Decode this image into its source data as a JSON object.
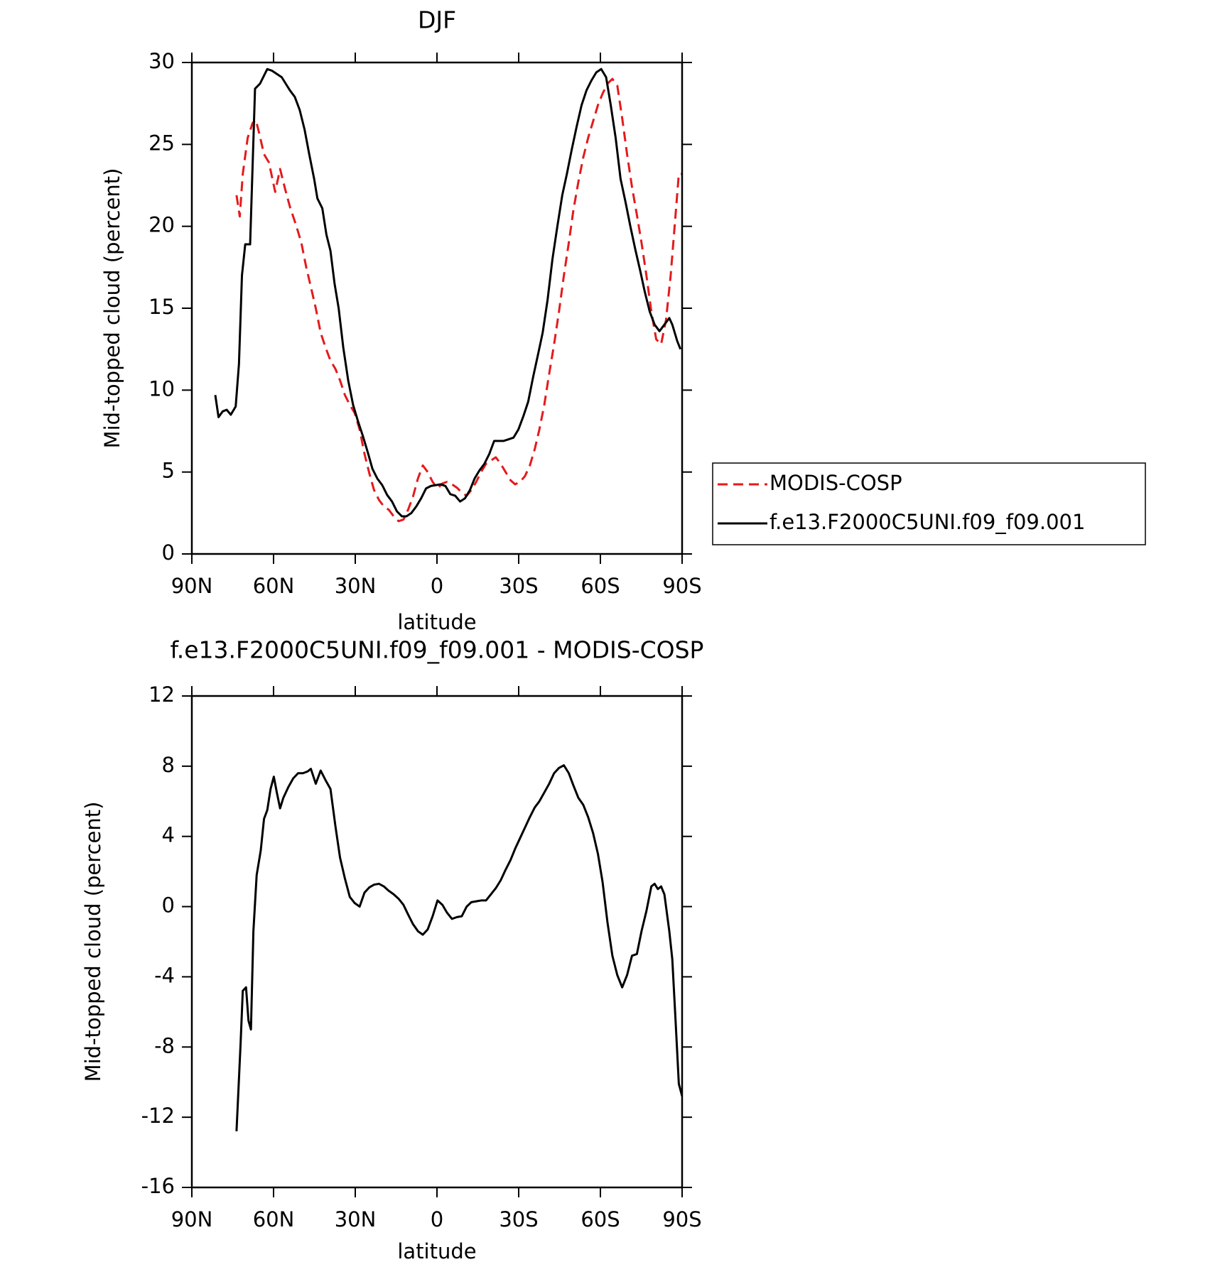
{
  "chart_data": [
    {
      "type": "line",
      "title": "DJF",
      "xlabel": "latitude",
      "ylabel": "Mid-topped cloud (percent)",
      "xlim": [
        90,
        -90
      ],
      "xticks": [
        {
          "value": 90,
          "label": "90N"
        },
        {
          "value": 60,
          "label": "60N"
        },
        {
          "value": 30,
          "label": "30N"
        },
        0,
        {
          "value": -30,
          "label": "30S"
        },
        {
          "value": -60,
          "label": "60S"
        },
        {
          "value": -90,
          "label": "90S"
        }
      ],
      "ylim": [
        0,
        30
      ],
      "yticks": [
        0,
        5,
        10,
        15,
        20,
        25,
        30
      ],
      "series": [
        {
          "name": "MODIS-COSP",
          "color": "#e41a1c",
          "dashed": true,
          "x": [
            73.6,
            72.4,
            71.3,
            69.5,
            67.7,
            66.5,
            65.3,
            63.5,
            61.7,
            59.4,
            57.6,
            55.8,
            54.0,
            51.6,
            49.8,
            48.0,
            46.3,
            44.5,
            42.7,
            40.9,
            39.1,
            37.3,
            35.6,
            33.8,
            32.0,
            30.2,
            28.4,
            26.6,
            24.8,
            23.1,
            21.3,
            19.5,
            17.7,
            15.9,
            14.1,
            12.3,
            10.6,
            8.8,
            7.0,
            5.2,
            3.4,
            1.6,
            -0.2,
            -2.0,
            -3.7,
            -5.5,
            -7.3,
            -9.1,
            -10.9,
            -12.6,
            -14.4,
            -16.2,
            -18.0,
            -19.8,
            -21.6,
            -23.4,
            -25.2,
            -27.0,
            -28.7,
            -30.5,
            -32.3,
            -34.1,
            -35.9,
            -37.6,
            -39.4,
            -41.2,
            -43.0,
            -44.8,
            -46.6,
            -48.4,
            -50.1,
            -51.9,
            -53.7,
            -55.5,
            -57.3,
            -59.1,
            -60.8,
            -62.6,
            -64.4,
            -66.2,
            -68.0,
            -69.8,
            -71.6,
            -73.4,
            -75.1,
            -76.9,
            -78.7,
            -80.5,
            -82.3,
            -84.1,
            -85.8,
            -87.6,
            -88.8,
            -90.0
          ],
          "values": [
            21.9,
            20.6,
            23.2,
            25.4,
            26.3,
            26.5,
            25.7,
            24.4,
            23.9,
            22.1,
            23.5,
            22.3,
            21.2,
            20.0,
            19.0,
            17.5,
            16.3,
            15.0,
            13.5,
            12.6,
            11.8,
            11.3,
            10.6,
            9.7,
            9.1,
            8.6,
            7.6,
            6.1,
            4.9,
            3.9,
            3.3,
            2.9,
            2.7,
            2.3,
            2.0,
            2.1,
            2.7,
            3.5,
            4.6,
            5.4,
            5.0,
            4.4,
            4.0,
            4.3,
            4.4,
            4.25,
            4.05,
            3.75,
            3.55,
            3.9,
            4.4,
            5.0,
            5.5,
            5.7,
            5.9,
            5.5,
            5.0,
            4.5,
            4.25,
            4.4,
            4.75,
            5.4,
            6.4,
            7.6,
            9.1,
            11.0,
            12.8,
            14.8,
            17.0,
            19.0,
            21.0,
            22.7,
            24.2,
            25.4,
            26.4,
            27.4,
            28.1,
            28.7,
            29.0,
            28.6,
            26.6,
            24.4,
            22.4,
            20.7,
            19.0,
            17.0,
            14.8,
            13.1,
            12.8,
            14.3,
            17.0,
            20.7,
            23.2,
            23.2
          ]
        },
        {
          "name": "f.e13.F2000C5UNI.f09_f09.001",
          "color": "#000000",
          "dashed": false,
          "x": [
            81.4,
            80.2,
            78.7,
            77.2,
            75.7,
            73.9,
            72.7,
            71.6,
            70.4,
            68.6,
            66.8,
            65.0,
            63.5,
            62.3,
            60.6,
            58.8,
            57.0,
            55.5,
            54.0,
            52.2,
            50.4,
            48.6,
            46.9,
            45.1,
            43.9,
            42.1,
            40.6,
            39.1,
            37.6,
            36.1,
            34.4,
            32.6,
            30.8,
            29.0,
            27.2,
            25.4,
            23.7,
            21.9,
            20.1,
            18.3,
            16.5,
            14.7,
            12.9,
            11.2,
            9.4,
            7.6,
            5.8,
            4.0,
            2.2,
            0.4,
            -1.3,
            -3.1,
            -4.9,
            -6.7,
            -8.5,
            -10.3,
            -12.1,
            -13.8,
            -15.6,
            -17.4,
            -19.2,
            -21.0,
            -22.8,
            -24.5,
            -26.3,
            -28.1,
            -29.9,
            -31.7,
            -33.5,
            -35.3,
            -37.0,
            -38.8,
            -40.6,
            -42.4,
            -44.2,
            -46.0,
            -47.7,
            -49.5,
            -51.3,
            -53.1,
            -54.9,
            -56.7,
            -58.5,
            -60.3,
            -62.1,
            -63.8,
            -65.6,
            -67.4,
            -69.2,
            -71.0,
            -72.8,
            -74.6,
            -76.3,
            -78.1,
            -79.9,
            -81.7,
            -83.5,
            -85.3,
            -86.4,
            -88.2,
            -89.4
          ],
          "values": [
            9.7,
            8.35,
            8.7,
            8.8,
            8.5,
            9.0,
            11.6,
            17.0,
            18.9,
            18.9,
            28.4,
            28.7,
            29.2,
            29.6,
            29.5,
            29.3,
            29.1,
            28.7,
            28.3,
            27.9,
            27.1,
            25.9,
            24.4,
            22.9,
            21.7,
            21.1,
            19.5,
            18.5,
            16.5,
            15.0,
            12.6,
            10.6,
            9.1,
            8.1,
            7.2,
            6.2,
            5.2,
            4.6,
            4.2,
            3.6,
            3.2,
            2.6,
            2.3,
            2.3,
            2.5,
            2.9,
            3.4,
            4.0,
            4.15,
            4.2,
            4.25,
            4.15,
            3.65,
            3.55,
            3.2,
            3.4,
            3.9,
            4.6,
            5.1,
            5.5,
            6.1,
            6.9,
            6.9,
            6.9,
            7.0,
            7.1,
            7.6,
            8.4,
            9.3,
            10.8,
            12.1,
            13.5,
            15.5,
            18.0,
            20.0,
            21.9,
            23.2,
            24.7,
            26.1,
            27.4,
            28.3,
            28.9,
            29.4,
            29.6,
            29.1,
            27.4,
            25.4,
            22.9,
            21.5,
            20.0,
            18.6,
            17.3,
            16.0,
            14.8,
            14.0,
            13.6,
            14.0,
            14.4,
            14.0,
            13.0,
            12.5
          ]
        }
      ]
    },
    {
      "type": "line",
      "title": "f.e13.F2000C5UNI.f09_f09.001 - MODIS-COSP",
      "xlabel": "latitude",
      "ylabel": "Mid-topped cloud (percent)",
      "xlim": [
        90,
        -90
      ],
      "xticks": [
        {
          "value": 90,
          "label": "90N"
        },
        {
          "value": 60,
          "label": "60N"
        },
        {
          "value": 30,
          "label": "30N"
        },
        0,
        {
          "value": -30,
          "label": "30S"
        },
        {
          "value": -60,
          "label": "60S"
        },
        {
          "value": -90,
          "label": "90S"
        }
      ],
      "ylim": [
        -16,
        12
      ],
      "yticks": [
        -16,
        -12,
        -8,
        -4,
        0,
        4,
        8,
        12
      ],
      "series": [
        {
          "color": "#000000",
          "dashed": false,
          "x": [
            73.6,
            72.1,
            71.3,
            70.1,
            69.2,
            68.3,
            67.4,
            66.2,
            64.7,
            63.5,
            62.3,
            61.1,
            59.9,
            58.8,
            57.6,
            56.4,
            54.6,
            52.8,
            51.0,
            49.2,
            47.5,
            46.3,
            44.5,
            42.7,
            40.9,
            39.1,
            37.3,
            35.6,
            33.8,
            32.0,
            30.2,
            28.4,
            26.6,
            24.8,
            23.1,
            21.3,
            19.5,
            17.7,
            15.9,
            14.1,
            12.3,
            10.6,
            8.8,
            7.0,
            5.2,
            3.4,
            1.6,
            -0.2,
            -2.0,
            -3.7,
            -5.5,
            -7.3,
            -9.1,
            -10.9,
            -12.6,
            -14.4,
            -16.2,
            -18.0,
            -19.8,
            -21.6,
            -23.4,
            -25.2,
            -27.0,
            -28.7,
            -30.5,
            -32.3,
            -34.1,
            -35.9,
            -37.6,
            -39.4,
            -41.2,
            -43.0,
            -44.8,
            -46.6,
            -48.4,
            -50.1,
            -51.9,
            -53.7,
            -55.5,
            -57.3,
            -59.1,
            -60.8,
            -62.6,
            -64.4,
            -66.2,
            -68.0,
            -69.8,
            -71.6,
            -73.4,
            -75.1,
            -76.9,
            -78.7,
            -79.9,
            -81.1,
            -82.3,
            -83.5,
            -85.3,
            -86.4,
            -87.6,
            -88.8,
            -90.0
          ],
          "values": [
            -12.8,
            -7.8,
            -4.8,
            -4.6,
            -6.5,
            -7.0,
            -1.4,
            1.8,
            3.2,
            5.0,
            5.5,
            6.7,
            7.4,
            6.5,
            5.6,
            6.2,
            6.8,
            7.3,
            7.6,
            7.6,
            7.7,
            7.85,
            7.0,
            7.75,
            7.2,
            6.7,
            4.6,
            2.8,
            1.6,
            0.55,
            0.2,
            0.0,
            0.8,
            1.1,
            1.25,
            1.3,
            1.15,
            0.9,
            0.7,
            0.45,
            0.1,
            -0.45,
            -1.0,
            -1.4,
            -1.6,
            -1.3,
            -0.55,
            0.35,
            0.1,
            -0.35,
            -0.7,
            -0.6,
            -0.55,
            0,
            0.25,
            0.3,
            0.35,
            0.35,
            0.7,
            1.05,
            1.5,
            2.1,
            2.65,
            3.3,
            3.9,
            4.5,
            5.1,
            5.65,
            6.0,
            6.5,
            7.0,
            7.6,
            7.9,
            8.05,
            7.6,
            6.9,
            6.2,
            5.8,
            5.1,
            4.2,
            3.0,
            1.4,
            -0.9,
            -2.8,
            -3.9,
            -4.6,
            -3.9,
            -2.8,
            -2.7,
            -1.4,
            -0.25,
            1.15,
            1.3,
            1.0,
            1.15,
            0.7,
            -1.4,
            -3.0,
            -6.5,
            -10.1,
            -10.8
          ]
        }
      ]
    }
  ]
}
